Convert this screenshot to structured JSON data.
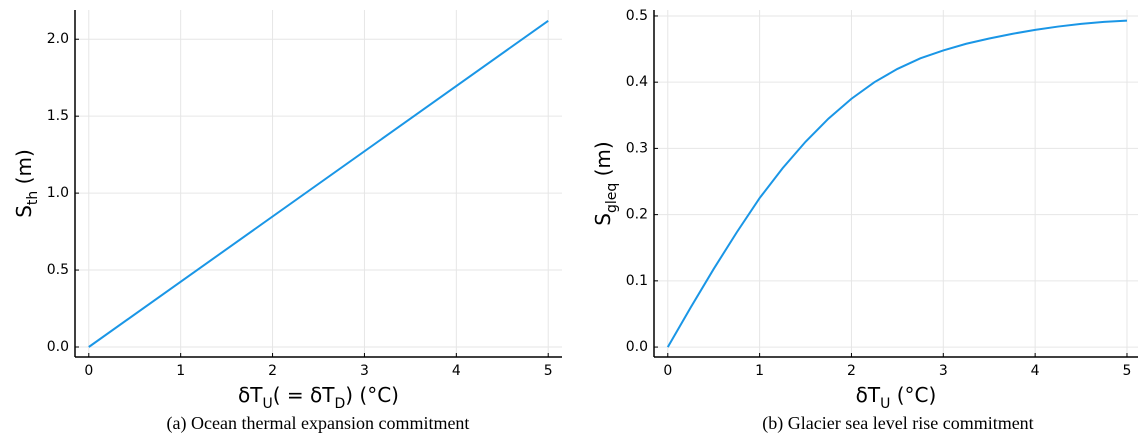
{
  "chart_data": [
    {
      "type": "line",
      "caption": "(a) Ocean thermal expansion commitment",
      "xlabel": [
        {
          "text": "δT"
        },
        {
          "sub": "U"
        },
        {
          "text": "( = δT"
        },
        {
          "sub": "D"
        },
        {
          "text": ") (°C)"
        }
      ],
      "ylabel": [
        {
          "text": "S"
        },
        {
          "sub": "th"
        },
        {
          "text": " (m)"
        }
      ],
      "xlim": [
        -0.15,
        5.15
      ],
      "ylim": [
        -0.065,
        2.19
      ],
      "xticks": [
        0,
        1,
        2,
        3,
        4,
        5
      ],
      "yticks": [
        {
          "value": 0,
          "label": "0.0"
        },
        {
          "value": 0.5,
          "label": "0.5"
        },
        {
          "value": 1,
          "label": "1.0"
        },
        {
          "value": 1.5,
          "label": "1.5"
        },
        {
          "value": 2,
          "label": "2.0"
        }
      ],
      "grid": true,
      "x": [
        0,
        5
      ],
      "series": [
        {
          "color": "#1a96e6",
          "values": [
            0,
            2.12
          ]
        }
      ]
    },
    {
      "type": "line",
      "caption": "(b) Glacier sea level rise commitment",
      "xlabel": [
        {
          "text": "δT"
        },
        {
          "sub": "U"
        },
        {
          "text": " (°C)"
        }
      ],
      "ylabel": [
        {
          "text": "S"
        },
        {
          "sub": "gleq"
        },
        {
          "text": " (m)"
        }
      ],
      "xlim": [
        -0.15,
        5.12
      ],
      "ylim": [
        -0.015,
        0.509
      ],
      "xticks": [
        0,
        1,
        2,
        3,
        4,
        5
      ],
      "yticks": [
        {
          "value": 0,
          "label": "0.0"
        },
        {
          "value": 0.1,
          "label": "0.1"
        },
        {
          "value": 0.2,
          "label": "0.2"
        },
        {
          "value": 0.3,
          "label": "0.3"
        },
        {
          "value": 0.4,
          "label": "0.4"
        },
        {
          "value": 0.5,
          "label": "0.5"
        }
      ],
      "grid": true,
      "x": [
        0,
        0.25,
        0.5,
        0.75,
        1,
        1.25,
        1.5,
        1.75,
        2,
        2.25,
        2.5,
        2.75,
        3,
        3.25,
        3.5,
        3.75,
        4,
        4.25,
        4.5,
        4.75,
        5
      ],
      "series": [
        {
          "color": "#1a96e6",
          "values": [
            0,
            0.06,
            0.118,
            0.173,
            0.225,
            0.27,
            0.31,
            0.345,
            0.375,
            0.4,
            0.42,
            0.436,
            0.448,
            0.458,
            0.466,
            0.473,
            0.479,
            0.484,
            0.488,
            0.491,
            0.493
          ]
        }
      ]
    }
  ]
}
